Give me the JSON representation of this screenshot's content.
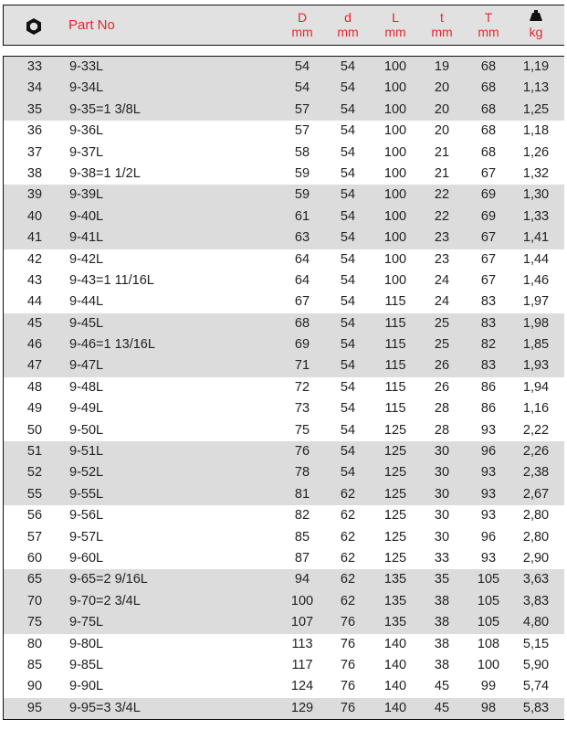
{
  "header": {
    "size_icon": "hex-nut-icon",
    "part_no": "Part No",
    "columns": [
      {
        "sym": "D",
        "unit": "mm"
      },
      {
        "sym": "d",
        "unit": "mm"
      },
      {
        "sym": "L",
        "unit": "mm"
      },
      {
        "sym": "t",
        "unit": "mm"
      },
      {
        "sym": "T",
        "unit": "mm"
      },
      {
        "sym": "weight-icon",
        "unit": "kg"
      }
    ]
  },
  "colors": {
    "header_text": "#e3262d",
    "band": "#dcdcdc",
    "header_bg": "#e1e1e1"
  },
  "rows": [
    [
      "33",
      "9-33L",
      "54",
      "54",
      "100",
      "19",
      "68",
      "1,19"
    ],
    [
      "34",
      "9-34L",
      "54",
      "54",
      "100",
      "20",
      "68",
      "1,13"
    ],
    [
      "35",
      "9-35=1 3/8L",
      "57",
      "54",
      "100",
      "20",
      "68",
      "1,25"
    ],
    [
      "36",
      "9-36L",
      "57",
      "54",
      "100",
      "20",
      "68",
      "1,18"
    ],
    [
      "37",
      "9-37L",
      "58",
      "54",
      "100",
      "21",
      "68",
      "1,26"
    ],
    [
      "38",
      "9-38=1 1/2L",
      "59",
      "54",
      "100",
      "21",
      "67",
      "1,32"
    ],
    [
      "39",
      "9-39L",
      "59",
      "54",
      "100",
      "22",
      "69",
      "1,30"
    ],
    [
      "40",
      "9-40L",
      "61",
      "54",
      "100",
      "22",
      "69",
      "1,33"
    ],
    [
      "41",
      "9-41L",
      "63",
      "54",
      "100",
      "23",
      "67",
      "1,41"
    ],
    [
      "42",
      "9-42L",
      "64",
      "54",
      "100",
      "23",
      "67",
      "1,44"
    ],
    [
      "43",
      "9-43=1 11/16L",
      "64",
      "54",
      "100",
      "24",
      "67",
      "1,46"
    ],
    [
      "44",
      "9-44L",
      "67",
      "54",
      "115",
      "24",
      "83",
      "1,97"
    ],
    [
      "45",
      "9-45L",
      "68",
      "54",
      "115",
      "25",
      "83",
      "1,98"
    ],
    [
      "46",
      "9-46=1 13/16L",
      "69",
      "54",
      "115",
      "25",
      "82",
      "1,85"
    ],
    [
      "47",
      "9-47L",
      "71",
      "54",
      "115",
      "26",
      "83",
      "1,93"
    ],
    [
      "48",
      "9-48L",
      "72",
      "54",
      "115",
      "26",
      "86",
      "1,94"
    ],
    [
      "49",
      "9-49L",
      "73",
      "54",
      "115",
      "28",
      "86",
      "1,16"
    ],
    [
      "50",
      "9-50L",
      "75",
      "54",
      "125",
      "28",
      "93",
      "2,22"
    ],
    [
      "51",
      "9-51L",
      "76",
      "54",
      "125",
      "30",
      "96",
      "2,26"
    ],
    [
      "52",
      "9-52L",
      "78",
      "54",
      "125",
      "30",
      "93",
      "2,38"
    ],
    [
      "55",
      "9-55L",
      "81",
      "62",
      "125",
      "30",
      "93",
      "2,67"
    ],
    [
      "56",
      "9-56L",
      "82",
      "62",
      "125",
      "30",
      "93",
      "2,80"
    ],
    [
      "57",
      "9-57L",
      "85",
      "62",
      "125",
      "30",
      "96",
      "2,80"
    ],
    [
      "60",
      "9-60L",
      "87",
      "62",
      "125",
      "33",
      "93",
      "2,90"
    ],
    [
      "65",
      "9-65=2 9/16L",
      "94",
      "62",
      "135",
      "35",
      "105",
      "3,63"
    ],
    [
      "70",
      "9-70=2 3/4L",
      "100",
      "62",
      "135",
      "38",
      "105",
      "3,83"
    ],
    [
      "75",
      "9-75L",
      "107",
      "76",
      "135",
      "38",
      "105",
      "4,80"
    ],
    [
      "80",
      "9-80L",
      "113",
      "76",
      "140",
      "38",
      "108",
      "5,15"
    ],
    [
      "85",
      "9-85L",
      "117",
      "76",
      "140",
      "38",
      "100",
      "5,90"
    ],
    [
      "90",
      "9-90L",
      "124",
      "76",
      "140",
      "45",
      "99",
      "5,74"
    ],
    [
      "95",
      "9-95=3 3/4L",
      "129",
      "76",
      "140",
      "45",
      "98",
      "5,83"
    ]
  ]
}
